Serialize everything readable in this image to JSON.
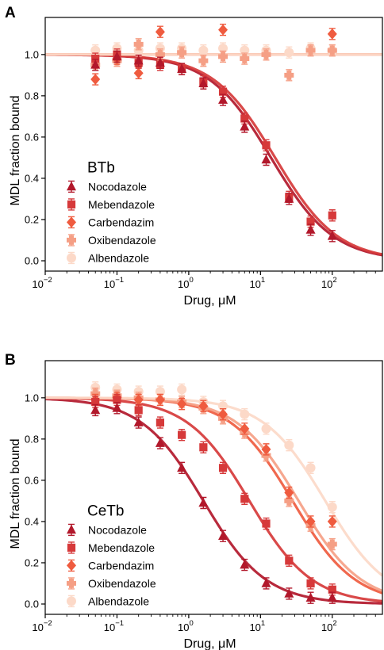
{
  "chart_data": [
    {
      "panel": "A",
      "type": "scatter",
      "title": "",
      "legend_title": "BTb",
      "legend_placement": "lower-left",
      "xlabel": "Drug, μM",
      "ylabel": "MDL fraction bound",
      "xscale": "log",
      "xlim": [
        0.01,
        500
      ],
      "ylim": [
        -0.05,
        1.18
      ],
      "grid": false,
      "xticks": [
        0.01,
        0.1,
        1,
        10,
        100
      ],
      "xtick_labels": [
        {
          "base": "10",
          "exp": "−2"
        },
        {
          "base": "10",
          "exp": "−1"
        },
        {
          "base": "10",
          "exp": "0"
        },
        {
          "base": "10",
          "exp": "1"
        },
        {
          "base": "10",
          "exp": "2"
        }
      ],
      "yticks": [
        0.0,
        0.2,
        0.4,
        0.6,
        0.8,
        1.0
      ],
      "ytick_labels": [
        "0.0",
        "0.2",
        "0.4",
        "0.6",
        "0.8",
        "1.0"
      ],
      "x": [
        0.05,
        0.1,
        0.2,
        0.4,
        0.8,
        1.6,
        3,
        6,
        12,
        25,
        50,
        100
      ],
      "series": [
        {
          "name": "Nocodazole",
          "marker": "triangle",
          "color": "#b2182b",
          "y": [
            0.95,
            0.99,
            0.97,
            0.96,
            0.93,
            0.86,
            0.78,
            0.65,
            0.49,
            0.3,
            0.15,
            0.12
          ],
          "fit": {
            "type": "hill",
            "top": 1.0,
            "bottom": 0.0,
            "ic50": 14,
            "hill": 1.0
          }
        },
        {
          "name": "Mebendazole",
          "marker": "square",
          "color": "#d6393a",
          "y": [
            0.98,
            1.0,
            0.96,
            0.95,
            0.93,
            0.87,
            0.82,
            0.69,
            0.56,
            0.31,
            0.19,
            0.22
          ],
          "fit": {
            "type": "hill",
            "top": 1.0,
            "bottom": 0.0,
            "ic50": 16,
            "hill": 1.0
          }
        },
        {
          "name": "Carbendazim",
          "marker": "diamond",
          "color": "#ef5b3f",
          "y": [
            0.88,
            0.98,
            0.91,
            1.11,
            null,
            null,
            1.12,
            null,
            null,
            null,
            null,
            1.1
          ],
          "fit": {
            "type": "constant",
            "value": 1.0
          }
        },
        {
          "name": "Oxibendazole",
          "marker": "plus",
          "color": "#f59f85",
          "y": [
            0.95,
            0.97,
            1.05,
            1.0,
            1.01,
            0.97,
            0.99,
            0.98,
            1.0,
            0.9,
            1.02,
            1.02
          ],
          "fit": {
            "type": "constant",
            "value": 1.0
          }
        },
        {
          "name": "Albendazole",
          "marker": "circle",
          "color": "#fcd9c8",
          "y": [
            1.02,
            1.03,
            1.02,
            1.03,
            1.03,
            1.02,
            1.03,
            1.02,
            1.02,
            1.01,
            1.03,
            1.02
          ],
          "fit": {
            "type": "constant",
            "value": 1.0
          }
        }
      ]
    },
    {
      "panel": "B",
      "type": "scatter",
      "title": "",
      "legend_title": "CeTb",
      "legend_placement": "lower-left",
      "xlabel": "Drug, μM",
      "ylabel": "MDL fraction bound",
      "xscale": "log",
      "xlim": [
        0.01,
        500
      ],
      "ylim": [
        -0.05,
        1.18
      ],
      "grid": false,
      "xticks": [
        0.01,
        0.1,
        1,
        10,
        100
      ],
      "xtick_labels": [
        {
          "base": "10",
          "exp": "−2"
        },
        {
          "base": "10",
          "exp": "−1"
        },
        {
          "base": "10",
          "exp": "0"
        },
        {
          "base": "10",
          "exp": "1"
        },
        {
          "base": "10",
          "exp": "2"
        }
      ],
      "yticks": [
        0.0,
        0.2,
        0.4,
        0.6,
        0.8,
        1.0
      ],
      "ytick_labels": [
        "0.0",
        "0.2",
        "0.4",
        "0.6",
        "0.8",
        "1.0"
      ],
      "x": [
        0.05,
        0.1,
        0.2,
        0.4,
        0.8,
        1.6,
        3,
        6,
        12,
        25,
        50,
        100
      ],
      "series": [
        {
          "name": "Nocodazole",
          "marker": "triangle",
          "color": "#b2182b",
          "y": [
            0.94,
            0.95,
            0.88,
            0.78,
            0.66,
            0.49,
            0.33,
            0.19,
            0.1,
            0.05,
            0.03,
            0.03
          ],
          "fit": {
            "type": "hill",
            "top": 1.0,
            "bottom": 0.0,
            "ic50": 1.6,
            "hill": 1.0
          }
        },
        {
          "name": "Mebendazole",
          "marker": "square",
          "color": "#d6393a",
          "y": [
            0.98,
            0.99,
            0.94,
            0.88,
            0.82,
            0.76,
            0.66,
            0.51,
            0.39,
            0.21,
            0.1,
            0.07
          ],
          "fit": {
            "type": "hill",
            "top": 1.0,
            "bottom": 0.0,
            "ic50": 7,
            "hill": 1.0
          }
        },
        {
          "name": "Carbendazim",
          "marker": "diamond",
          "color": "#ef5b3f",
          "y": [
            0.99,
            1.0,
            0.99,
            0.99,
            0.97,
            0.96,
            0.92,
            0.85,
            0.75,
            0.54,
            0.4,
            0.4
          ],
          "fit": {
            "type": "hill",
            "top": 1.0,
            "bottom": 0.0,
            "ic50": 28,
            "hill": 1.0
          }
        },
        {
          "name": "Oxibendazole",
          "marker": "plus",
          "color": "#f59f85",
          "y": [
            1.02,
            1.01,
            1.0,
            0.99,
            0.98,
            0.95,
            0.9,
            0.83,
            0.72,
            0.5,
            0.38,
            0.29
          ],
          "fit": {
            "type": "hill",
            "top": 1.0,
            "bottom": 0.0,
            "ic50": 34,
            "hill": 1.0
          }
        },
        {
          "name": "Albendazole",
          "marker": "circle",
          "color": "#fcd9c8",
          "y": [
            1.05,
            1.04,
            1.03,
            1.03,
            1.04,
            0.98,
            0.96,
            0.92,
            0.85,
            0.77,
            0.66,
            0.47
          ],
          "fit": {
            "type": "hill",
            "top": 1.0,
            "bottom": 0.0,
            "ic50": 80,
            "hill": 1.0
          }
        }
      ]
    }
  ]
}
